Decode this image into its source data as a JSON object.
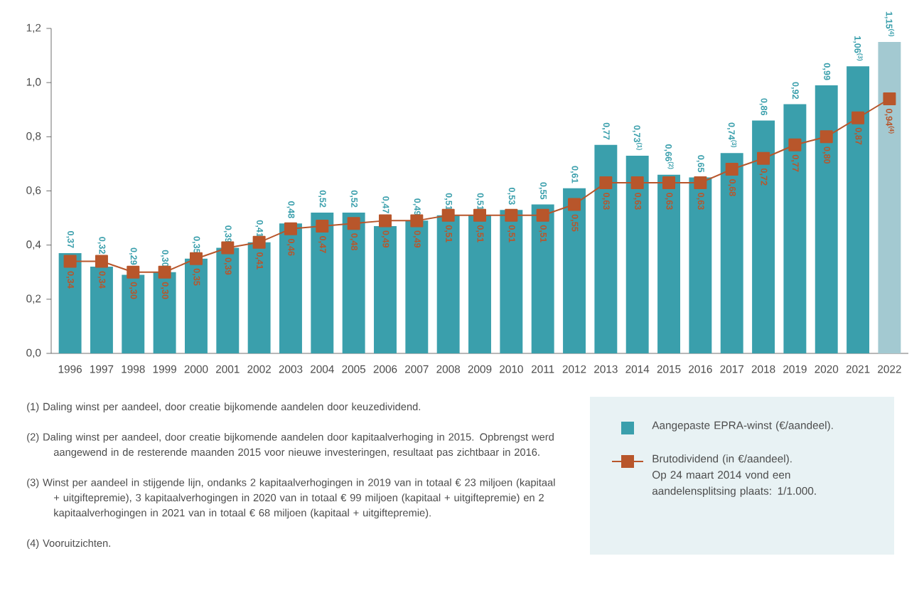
{
  "chart_data": {
    "type": "bar",
    "categories": [
      "1996",
      "1997",
      "1998",
      "1999",
      "2000",
      "2001",
      "2002",
      "2003",
      "2004",
      "2005",
      "2006",
      "2007",
      "2008",
      "2009",
      "2010",
      "2011",
      "2012",
      "2013",
      "2014",
      "2015",
      "2016",
      "2017",
      "2018",
      "2019",
      "2020",
      "2021",
      "2022"
    ],
    "series": [
      {
        "name": "Aangepaste EPRA-winst (€/aandeel).",
        "color": "#3a9fac",
        "colors": [
          "#3a9fac",
          "#3a9fac",
          "#3a9fac",
          "#3a9fac",
          "#3a9fac",
          "#3a9fac",
          "#3a9fac",
          "#3a9fac",
          "#3a9fac",
          "#3a9fac",
          "#3a9fac",
          "#3a9fac",
          "#3a9fac",
          "#3a9fac",
          "#3a9fac",
          "#3a9fac",
          "#3a9fac",
          "#3a9fac",
          "#3a9fac",
          "#3a9fac",
          "#3a9fac",
          "#3a9fac",
          "#3a9fac",
          "#3a9fac",
          "#3a9fac",
          "#3a9fac",
          "#a3c9d1"
        ],
        "values": [
          0.37,
          0.32,
          0.29,
          0.3,
          0.35,
          0.39,
          0.41,
          0.48,
          0.52,
          0.52,
          0.47,
          0.49,
          0.51,
          0.51,
          0.53,
          0.55,
          0.61,
          0.77,
          0.73,
          0.66,
          0.65,
          0.74,
          0.86,
          0.92,
          0.99,
          1.06,
          1.15
        ],
        "value_labels": [
          "0,37",
          "0,32",
          "0,29",
          "0,30",
          "0,35",
          "0,39",
          "0,41",
          "0,48",
          "0,52",
          "0,52",
          "0,47",
          "0,49",
          "0,51",
          "0,51",
          "0,53",
          "0,55",
          "0,61",
          "0,77",
          "0,73$^{(1)}$",
          "0,66$^{(2)}$",
          "0,65",
          "0,74$^{(3)}$",
          "0,86",
          "0,92",
          "0,99",
          "1,06$^{(3)}$",
          "1,15$^{(4)}$"
        ]
      },
      {
        "name": "Brutodividend (in €/aandeel). Op 24 maart 2014 vond een aandelensplitsing plaats: 1/1.000.",
        "type": "line",
        "color": "#b8562b",
        "values": [
          0.34,
          0.34,
          0.3,
          0.3,
          0.35,
          0.39,
          0.41,
          0.46,
          0.47,
          0.48,
          0.49,
          0.49,
          0.51,
          0.51,
          0.51,
          0.51,
          0.55,
          0.63,
          0.63,
          0.63,
          0.63,
          0.68,
          0.72,
          0.77,
          0.8,
          0.87,
          0.94
        ],
        "value_labels": [
          "0,34",
          "0,34",
          "0,30",
          "0,30",
          "0,35",
          "0,39",
          "0,41",
          "0,46",
          "0,47",
          "0,48",
          "0,49",
          "0,49",
          "0,51",
          "0,51",
          "0,51",
          "0,51",
          "0,55",
          "0,63",
          "0,63",
          "0,63",
          "0,63",
          "0,68",
          "0,72",
          "0,77",
          "0,80",
          "0,87",
          "0,94$^{(4)}$"
        ]
      }
    ],
    "ylim": [
      0,
      1.2
    ],
    "yticks": [
      {
        "value": 0,
        "label": "0,0"
      },
      {
        "value": 0.2,
        "label": "0,2"
      },
      {
        "value": 0.4,
        "label": "0,4"
      },
      {
        "value": 0.6,
        "label": "0,6"
      },
      {
        "value": 0.8,
        "label": "0,8"
      },
      {
        "value": 1.0,
        "label": "1,0"
      },
      {
        "value": 1.2,
        "label": "1,2"
      }
    ],
    "marker": "square",
    "legend": "bottom right",
    "annotations": [
      "(1)  Daling winst per aandeel, door creatie bijkomende aandelen door keuzedividend.",
      "(2)  Daling winst per aandeel, door creatie bijkomende aandelen door kapitaalverhoging in 2015. Opbrengst werd aangewend in de resterende maanden 2015 voor nieuwe investeringen, resultaat pas zichtbaar in 2016.",
      "(3)  Winst per aandeel in stijgende lijn, ondanks 2 kapitaalverhogingen in 2019 van in totaal € 23 miljoen (kapitaal + uitgiftepremie), 3 kapitaalverhogingen in 2020 van in totaal € 99 miljoen (kapitaal + uitgiftepremie) en 2 kapitaalverhogingen in 2021 van in totaal € 68 miljoen (kapitaal + uitgiftepremie).",
      "(4)  Vooruitzichten."
    ]
  }
}
